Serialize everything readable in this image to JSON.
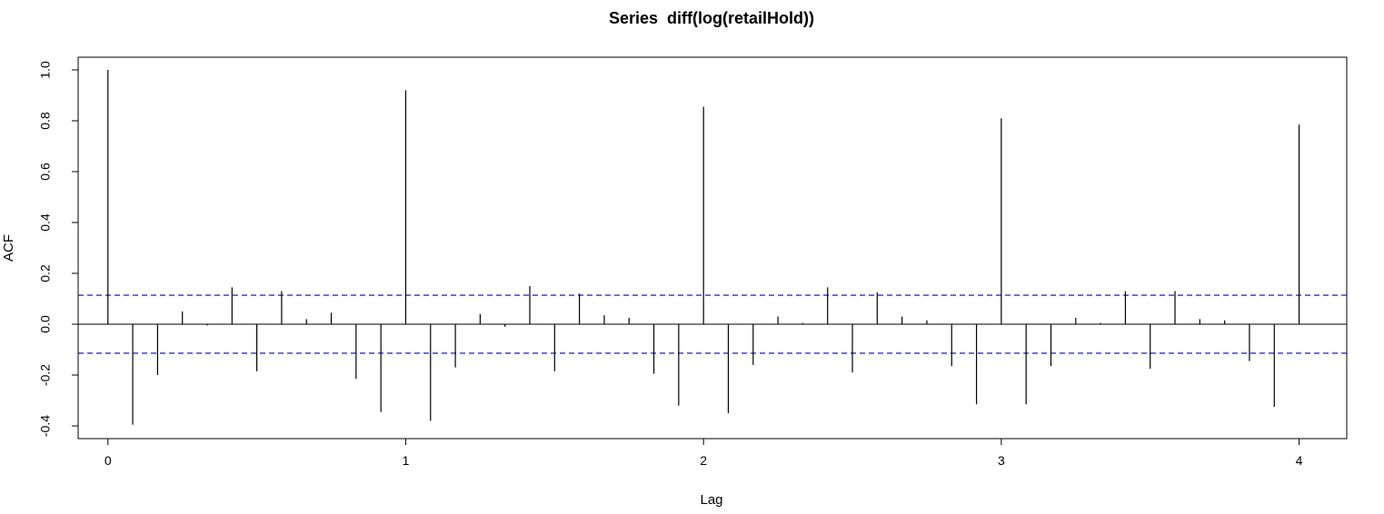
{
  "chart_data": {
    "type": "bar",
    "title": "Series  diff(log(retailHold))",
    "xlabel": "Lag",
    "ylabel": "ACF",
    "xlim": [
      -0.1,
      4.16
    ],
    "ylim": [
      -0.45,
      1.05
    ],
    "x_ticks": [
      "0",
      "1",
      "2",
      "3",
      "4"
    ],
    "y_ticks": [
      "-0.4",
      "-0.2",
      "0.0",
      "0.2",
      "0.4",
      "0.6",
      "0.8",
      "1.0"
    ],
    "confidence_bound": 0.114,
    "colors": {
      "bars": "#000000",
      "bounds": "#0000cc",
      "zero": "#000000"
    },
    "lags": [
      0,
      0.0833,
      0.1667,
      0.25,
      0.3333,
      0.4167,
      0.5,
      0.5833,
      0.6667,
      0.75,
      0.8333,
      0.9167,
      1.0,
      1.0833,
      1.1667,
      1.25,
      1.3333,
      1.4167,
      1.5,
      1.5833,
      1.6667,
      1.75,
      1.8333,
      1.9167,
      2.0,
      2.0833,
      2.1667,
      2.25,
      2.3333,
      2.4167,
      2.5,
      2.5833,
      2.6667,
      2.75,
      2.8333,
      2.9167,
      3.0,
      3.0833,
      3.1667,
      3.25,
      3.3333,
      3.4167,
      3.5,
      3.5833,
      3.6667,
      3.75,
      3.8333,
      3.9167,
      4.0
    ],
    "values": [
      1.0,
      -0.395,
      -0.2,
      0.05,
      -0.005,
      0.145,
      -0.185,
      0.13,
      0.02,
      0.045,
      -0.215,
      -0.345,
      0.92,
      -0.38,
      -0.17,
      0.04,
      -0.01,
      0.15,
      -0.185,
      0.12,
      0.035,
      0.025,
      -0.195,
      -0.32,
      0.855,
      -0.35,
      -0.16,
      0.03,
      0.005,
      0.145,
      -0.19,
      0.125,
      0.03,
      0.015,
      -0.165,
      -0.315,
      0.81,
      -0.315,
      -0.165,
      0.025,
      0.005,
      0.13,
      -0.175,
      0.13,
      0.02,
      0.015,
      -0.145,
      -0.325,
      0.785
    ]
  }
}
